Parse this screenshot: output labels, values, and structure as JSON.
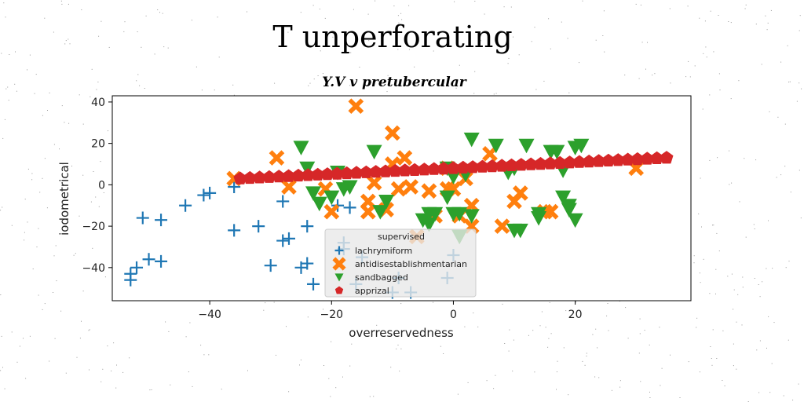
{
  "chart_data": {
    "type": "scatter",
    "title": "T unperforating",
    "subtitle": "Y.V v pretubercular",
    "xlabel": "overreservedness",
    "ylabel": "iodometrical",
    "xlim": [
      -56,
      39
    ],
    "ylim": [
      -56,
      43
    ],
    "xticks": [
      -40,
      -20,
      0,
      20
    ],
    "yticks": [
      -40,
      -20,
      0,
      20,
      40
    ],
    "grid": false,
    "legend": {
      "title": "supervised",
      "placement": "lower-center"
    },
    "series": [
      {
        "name": "lachrymiform",
        "marker": "plus",
        "color": "#1f77b4",
        "points": [
          [
            -53,
            -46
          ],
          [
            -53,
            -43
          ],
          [
            -52,
            -40
          ],
          [
            -51,
            -16
          ],
          [
            -50,
            -36
          ],
          [
            -48,
            -37
          ],
          [
            -48,
            -17
          ],
          [
            -44,
            -10
          ],
          [
            -41,
            -5
          ],
          [
            -40,
            -4
          ],
          [
            -36,
            -22
          ],
          [
            -36,
            -1
          ],
          [
            -32,
            -20
          ],
          [
            -30,
            -39
          ],
          [
            -28,
            -8
          ],
          [
            -28,
            -27
          ],
          [
            -27,
            -26
          ],
          [
            -25,
            -40
          ],
          [
            -24,
            -20
          ],
          [
            -24,
            -38
          ],
          [
            -23,
            -48
          ],
          [
            -19,
            -10
          ],
          [
            -18,
            -31
          ],
          [
            -18,
            -28
          ],
          [
            -17,
            -11
          ],
          [
            -16,
            -48
          ],
          [
            -15,
            -35
          ],
          [
            -10,
            -52
          ],
          [
            -9,
            -45
          ],
          [
            -7,
            -52
          ],
          [
            0,
            -34
          ],
          [
            -1,
            -45
          ]
        ]
      },
      {
        "name": "antidisestablishmentarian",
        "marker": "x",
        "color": "#ff7f0e",
        "points": [
          [
            -36,
            3
          ],
          [
            -29,
            13
          ],
          [
            -27,
            -1
          ],
          [
            -20,
            -13
          ],
          [
            -21,
            -2
          ],
          [
            -16,
            38
          ],
          [
            -14,
            -13
          ],
          [
            -14,
            -8
          ],
          [
            -13,
            1
          ],
          [
            -11,
            -12
          ],
          [
            -10,
            25
          ],
          [
            -10,
            10
          ],
          [
            -9,
            -2
          ],
          [
            -8,
            13
          ],
          [
            -7,
            -1
          ],
          [
            -6,
            -25
          ],
          [
            -4,
            -3
          ],
          [
            -3,
            -15
          ],
          [
            -1,
            -2
          ],
          [
            0,
            -2
          ],
          [
            1,
            -15
          ],
          [
            2,
            3
          ],
          [
            3,
            -10
          ],
          [
            3,
            -20
          ],
          [
            6,
            15
          ],
          [
            8,
            -20
          ],
          [
            10,
            -8
          ],
          [
            11,
            -4
          ],
          [
            15,
            -13
          ],
          [
            16,
            -13
          ],
          [
            30,
            8
          ],
          [
            -1,
            8
          ]
        ]
      },
      {
        "name": "sandbagged",
        "marker": "triangle_down",
        "color": "#2ca02c",
        "points": [
          [
            -25,
            18
          ],
          [
            -24,
            8
          ],
          [
            -23,
            -4
          ],
          [
            -22,
            -9
          ],
          [
            -20,
            -6
          ],
          [
            -19,
            6
          ],
          [
            -18,
            -2
          ],
          [
            -17,
            -1
          ],
          [
            -13,
            16
          ],
          [
            -12,
            -13
          ],
          [
            -11,
            -8
          ],
          [
            -5,
            -17
          ],
          [
            -4,
            -14
          ],
          [
            -4,
            -19
          ],
          [
            -3,
            -14
          ],
          [
            -1,
            8
          ],
          [
            -1,
            -6
          ],
          [
            0,
            4
          ],
          [
            0,
            -14
          ],
          [
            1,
            -14
          ],
          [
            1,
            -25
          ],
          [
            2,
            5
          ],
          [
            3,
            -15
          ],
          [
            3,
            22
          ],
          [
            7,
            19
          ],
          [
            9,
            6
          ],
          [
            10,
            -22
          ],
          [
            10,
            8
          ],
          [
            11,
            -22
          ],
          [
            12,
            19
          ],
          [
            14,
            -14
          ],
          [
            16,
            16
          ],
          [
            17,
            16
          ],
          [
            18,
            7
          ],
          [
            18,
            -6
          ],
          [
            19,
            -12
          ],
          [
            19,
            -10
          ],
          [
            20,
            -17
          ],
          [
            20,
            18
          ],
          [
            21,
            19
          ],
          [
            14,
            -16
          ]
        ]
      },
      {
        "name": "apprizal",
        "marker": "pentagon",
        "color": "#d62728",
        "line": {
          "x_start": -35,
          "x_end": 35,
          "y_start": 3,
          "y_end": 13,
          "count": 45
        }
      }
    ]
  }
}
